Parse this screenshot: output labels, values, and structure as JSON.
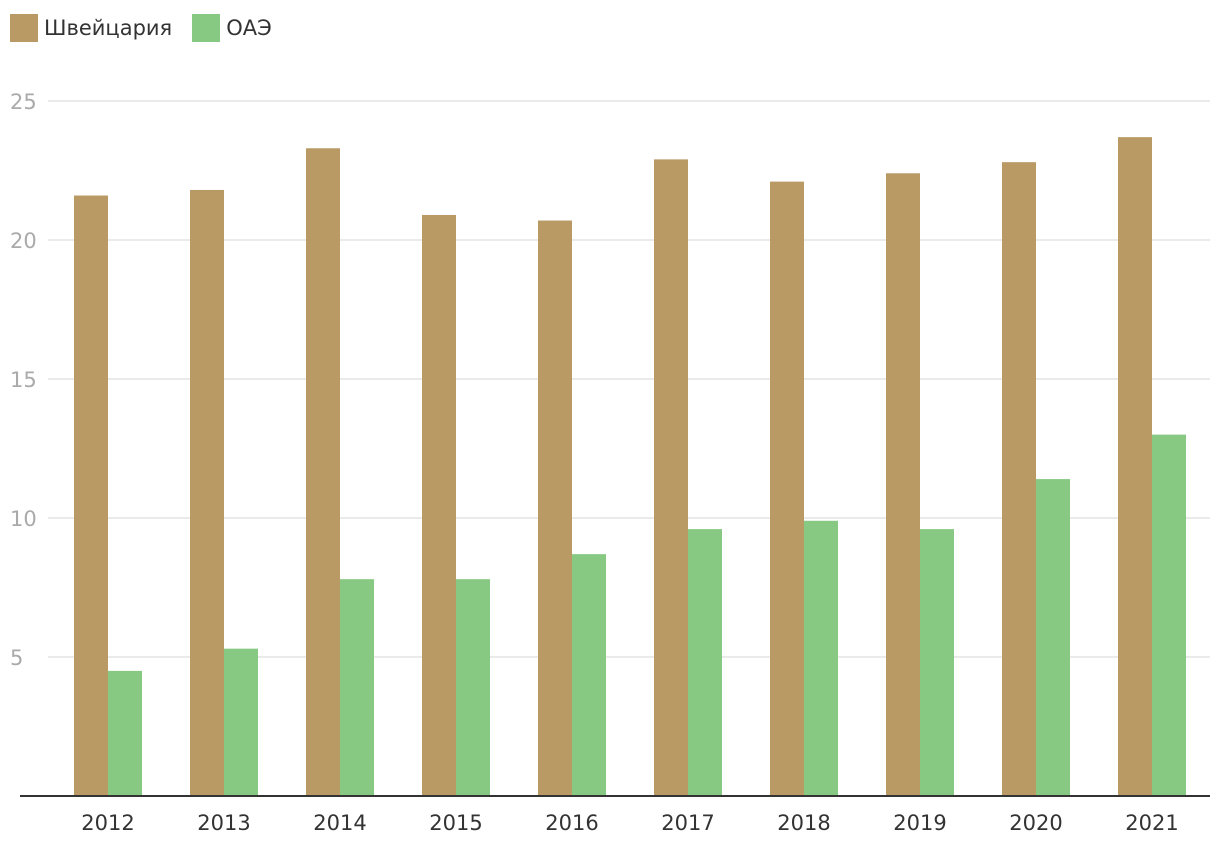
{
  "chart_data": {
    "type": "bar",
    "categories": [
      "2012",
      "2013",
      "2014",
      "2015",
      "2016",
      "2017",
      "2018",
      "2019",
      "2020",
      "2021"
    ],
    "series": [
      {
        "name": "Швейцария",
        "color": "#b99a65",
        "values": [
          21.6,
          21.8,
          23.3,
          20.9,
          20.7,
          22.9,
          22.1,
          22.4,
          22.8,
          23.7
        ]
      },
      {
        "name": "ОАЭ",
        "color": "#87c982",
        "values": [
          4.5,
          5.3,
          7.8,
          7.8,
          8.7,
          9.6,
          9.9,
          9.6,
          11.4,
          13.0
        ]
      }
    ],
    "title": "",
    "xlabel": "",
    "ylabel": "",
    "ylim": [
      0,
      25
    ],
    "yticks": [
      "5",
      "10",
      "15",
      "20",
      "25"
    ],
    "grid": true,
    "legend_position": "top-left"
  }
}
